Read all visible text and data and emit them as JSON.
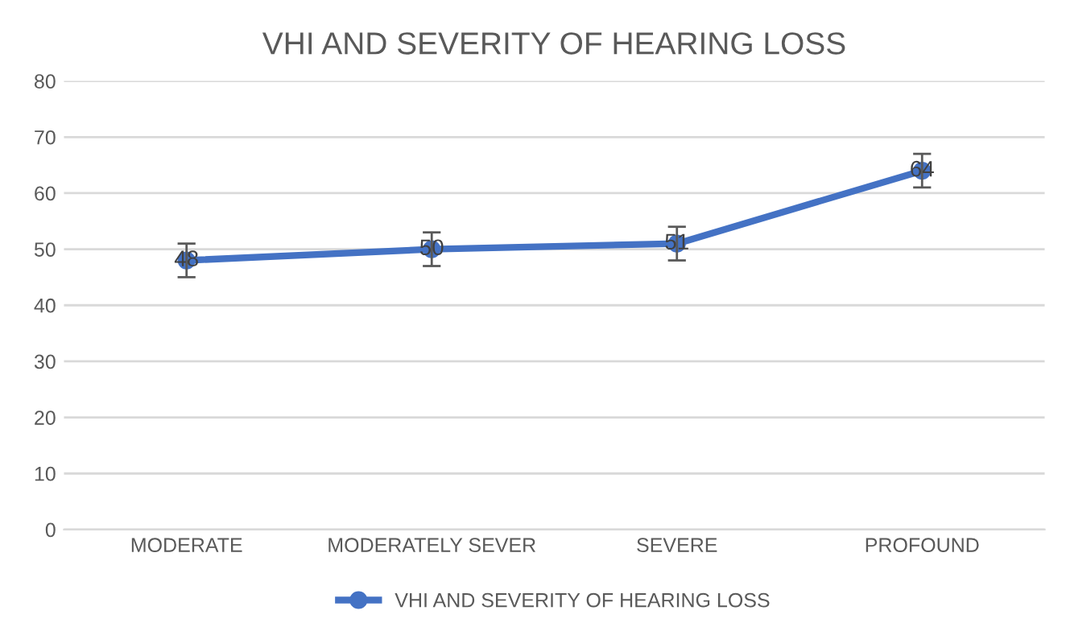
{
  "chart_data": {
    "type": "line",
    "title": "VHI AND SEVERITY OF HEARING LOSS",
    "categories": [
      "MODERATE",
      "MODERATELY SEVER",
      "SEVERE",
      "PROFOUND"
    ],
    "series": [
      {
        "name": "VHI AND SEVERITY OF HEARING LOSS",
        "color": "#4472c4",
        "values": [
          48,
          50,
          51,
          64
        ],
        "errors": [
          3,
          3,
          3,
          3
        ]
      }
    ],
    "ylim": [
      0,
      80
    ],
    "yticks": [
      0,
      10,
      20,
      30,
      40,
      50,
      60,
      70,
      80
    ],
    "grid": "y",
    "legend": "bottom",
    "marker": "circle",
    "line_style": "solid",
    "data_labels": true
  }
}
